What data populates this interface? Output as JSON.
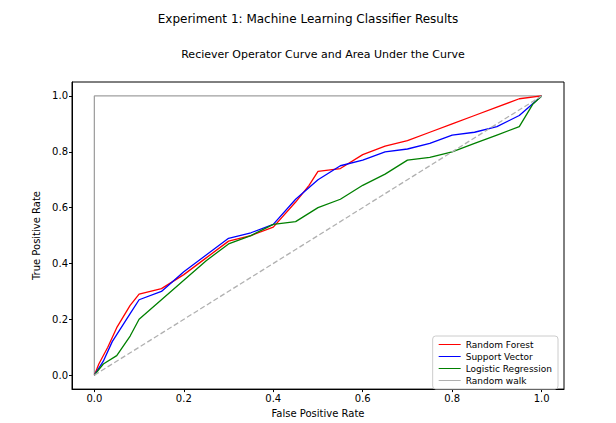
{
  "chart_data": {
    "type": "line",
    "title": "Experiment 1: Machine Learning Classifier Results",
    "subtitle": "Reciever Operator Curve and Area Under the Curve",
    "x_label": "False Positive Rate",
    "y_label": "True Positive Rate",
    "xlim": [
      -0.05,
      1.05
    ],
    "ylim": [
      -0.05,
      1.05
    ],
    "xticks": [
      {
        "value": 0,
        "label": "0.0"
      },
      0.2,
      0.4,
      0.6,
      0.8,
      {
        "value": 1,
        "label": "1.0"
      }
    ],
    "yticks": [
      {
        "value": 0,
        "label": "0.0"
      },
      0.2,
      0.4,
      0.6,
      0.8,
      {
        "value": 1,
        "label": "1.0"
      }
    ],
    "grid": false,
    "legend": "lower right",
    "marker": "none",
    "series": [
      {
        "color": "#a0a0a0",
        "line_style": "solid",
        "x": [
          0,
          0,
          1
        ],
        "values": [
          0,
          1,
          1
        ]
      },
      {
        "name": "Random Forest",
        "color": "#ff0000",
        "line_style": "solid",
        "x": [
          0,
          0.01,
          0.03,
          0.05,
          0.08,
          0.1,
          0.15,
          0.2,
          0.25,
          0.3,
          0.35,
          0.4,
          0.45,
          0.48,
          0.5,
          0.55,
          0.6,
          0.65,
          0.7,
          0.75,
          0.8,
          0.85,
          0.9,
          0.95,
          1
        ],
        "values": [
          0,
          0.04,
          0.1,
          0.17,
          0.25,
          0.29,
          0.31,
          0.36,
          0.42,
          0.48,
          0.5,
          0.53,
          0.62,
          0.68,
          0.73,
          0.74,
          0.79,
          0.82,
          0.84,
          0.87,
          0.9,
          0.93,
          0.96,
          0.99,
          1
        ]
      },
      {
        "name": "Support Vector",
        "color": "#0000ff",
        "line_style": "solid",
        "x": [
          0,
          0.02,
          0.04,
          0.06,
          0.08,
          0.1,
          0.15,
          0.2,
          0.25,
          0.3,
          0.35,
          0.4,
          0.45,
          0.5,
          0.55,
          0.6,
          0.65,
          0.7,
          0.75,
          0.8,
          0.85,
          0.9,
          0.95,
          1
        ],
        "values": [
          0,
          0.05,
          0.12,
          0.17,
          0.22,
          0.27,
          0.3,
          0.37,
          0.43,
          0.49,
          0.51,
          0.54,
          0.63,
          0.7,
          0.75,
          0.77,
          0.8,
          0.81,
          0.83,
          0.86,
          0.87,
          0.89,
          0.93,
          1
        ]
      },
      {
        "name": "Logistic Regression",
        "color": "#008000",
        "line_style": "solid",
        "x": [
          0,
          0.02,
          0.05,
          0.08,
          0.1,
          0.15,
          0.2,
          0.25,
          0.3,
          0.35,
          0.4,
          0.45,
          0.5,
          0.55,
          0.6,
          0.65,
          0.7,
          0.75,
          0.8,
          0.85,
          0.9,
          0.95,
          0.98,
          1
        ],
        "values": [
          0,
          0.04,
          0.07,
          0.14,
          0.2,
          0.27,
          0.34,
          0.41,
          0.47,
          0.5,
          0.54,
          0.55,
          0.6,
          0.63,
          0.68,
          0.72,
          0.77,
          0.78,
          0.8,
          0.83,
          0.86,
          0.89,
          0.97,
          1
        ]
      },
      {
        "name": "Random walk",
        "color": "#b0b0b0",
        "line_style": "dashed",
        "x": [
          0,
          1
        ],
        "values": [
          0,
          1
        ]
      }
    ]
  }
}
